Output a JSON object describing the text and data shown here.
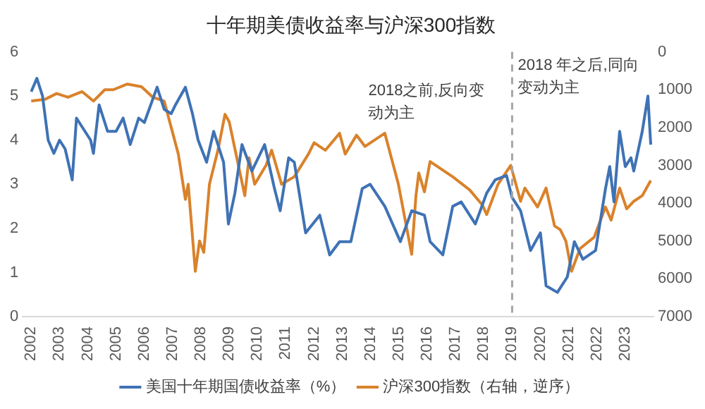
{
  "chart_data": {
    "type": "line",
    "title": "十年期美债收益率与沪深300指数",
    "xlim": [
      2001.7,
      2024
    ],
    "xticks": [
      2002,
      2003,
      2004,
      2005,
      2006,
      2007,
      2008,
      2009,
      2010,
      2011,
      2012,
      2013,
      2014,
      2015,
      2016,
      2017,
      2018,
      2019,
      2020,
      2021,
      2022,
      2023
    ],
    "ylim": [
      0,
      6
    ],
    "yticks": [
      0,
      1,
      2,
      3,
      4,
      5,
      6
    ],
    "y2lim": [
      7000,
      0
    ],
    "y2ticks": [
      0,
      1000,
      2000,
      3000,
      4000,
      5000,
      6000,
      7000
    ],
    "grid": false,
    "legend": "bottom",
    "marker": "none",
    "line_style": "solid",
    "ref_lines": [
      {
        "axis": "x",
        "value": 2019,
        "color": "#a6a6a6",
        "line_style": "dashed"
      }
    ],
    "annotations": [
      "2018之前,反向变动为主",
      "2018 年之后,同向变动为主"
    ],
    "series": [
      {
        "name": "美国十年期国债收益率（%）",
        "color": "#3f72b5",
        "x": [
          2002.0,
          2002.2,
          2002.4,
          2002.6,
          2002.8,
          2003.0,
          2003.2,
          2003.45,
          2003.6,
          2003.9,
          2004.1,
          2004.2,
          2004.4,
          2004.7,
          2005.0,
          2005.25,
          2005.5,
          2005.8,
          2006.0,
          2006.45,
          2006.7,
          2006.95,
          2007.1,
          2007.45,
          2007.7,
          2007.9,
          2008.2,
          2008.45,
          2008.8,
          2008.97,
          2009.2,
          2009.45,
          2009.8,
          2010.25,
          2010.6,
          2010.8,
          2011.1,
          2011.3,
          2011.7,
          2012.2,
          2012.55,
          2012.9,
          2013.3,
          2013.7,
          2013.98,
          2014.5,
          2015.05,
          2015.45,
          2015.9,
          2016.1,
          2016.55,
          2016.9,
          2017.2,
          2017.7,
          2018.1,
          2018.4,
          2018.8,
          2019.0,
          2019.3,
          2019.65,
          2020.0,
          2020.2,
          2020.6,
          2020.95,
          2021.2,
          2021.5,
          2021.95,
          2022.3,
          2022.45,
          2022.6,
          2022.8,
          2023.0,
          2023.2,
          2023.3,
          2023.6,
          2023.8,
          2023.9
        ],
        "values": [
          5.1,
          5.4,
          5.0,
          4.0,
          3.7,
          4.0,
          3.8,
          3.1,
          4.5,
          4.2,
          4.0,
          3.7,
          4.8,
          4.2,
          4.2,
          4.5,
          3.9,
          4.5,
          4.4,
          5.2,
          4.7,
          4.6,
          4.8,
          5.2,
          4.6,
          4.0,
          3.5,
          4.2,
          3.5,
          2.1,
          2.8,
          3.9,
          3.3,
          3.9,
          2.9,
          2.4,
          3.6,
          3.5,
          1.9,
          2.3,
          1.4,
          1.7,
          1.7,
          2.9,
          3.0,
          2.5,
          1.7,
          2.4,
          2.3,
          1.7,
          1.4,
          2.5,
          2.6,
          2.1,
          2.8,
          3.1,
          3.2,
          2.7,
          2.4,
          1.5,
          1.9,
          0.7,
          0.55,
          0.9,
          1.7,
          1.3,
          1.5,
          2.9,
          3.4,
          2.6,
          4.2,
          3.4,
          3.6,
          3.3,
          4.2,
          5.0,
          3.9
        ]
      },
      {
        "name": "沪深300指数（右轴，逆序）",
        "color": "#d9822b",
        "axis": "y2",
        "x": [
          2002.0,
          2002.5,
          2002.9,
          2003.3,
          2003.8,
          2004.2,
          2004.6,
          2004.9,
          2005.4,
          2005.9,
          2006.3,
          2006.7,
          2006.95,
          2007.2,
          2007.45,
          2007.55,
          2007.8,
          2007.95,
          2008.1,
          2008.3,
          2008.6,
          2008.85,
          2009.0,
          2009.55,
          2009.7,
          2009.9,
          2010.3,
          2010.5,
          2010.85,
          2011.3,
          2011.8,
          2012.0,
          2012.4,
          2012.9,
          2013.1,
          2013.5,
          2013.8,
          2014.5,
          2014.98,
          2015.45,
          2015.6,
          2015.7,
          2015.9,
          2016.1,
          2016.6,
          2016.9,
          2017.5,
          2017.95,
          2018.1,
          2018.5,
          2018.95,
          2019.3,
          2019.45,
          2019.9,
          2020.2,
          2020.5,
          2020.7,
          2020.9,
          2021.1,
          2021.4,
          2021.9,
          2022.3,
          2022.5,
          2022.8,
          2023.05,
          2023.3,
          2023.6,
          2023.9
        ],
        "values": [
          1300,
          1250,
          1100,
          1200,
          1050,
          1300,
          1000,
          1000,
          850,
          920,
          1200,
          1300,
          2000,
          2700,
          3900,
          3500,
          5800,
          5000,
          5300,
          3500,
          2600,
          1650,
          1850,
          3800,
          2800,
          3500,
          3000,
          2600,
          3500,
          3300,
          2700,
          2400,
          2600,
          2150,
          2700,
          2200,
          2500,
          2150,
          3500,
          5350,
          3800,
          3200,
          3700,
          2900,
          3150,
          3300,
          3650,
          4050,
          4300,
          3500,
          3000,
          3950,
          3600,
          4100,
          3600,
          4600,
          4700,
          5000,
          5800,
          5200,
          4900,
          4100,
          4450,
          3600,
          4150,
          3950,
          3800,
          3400
        ]
      }
    ]
  }
}
